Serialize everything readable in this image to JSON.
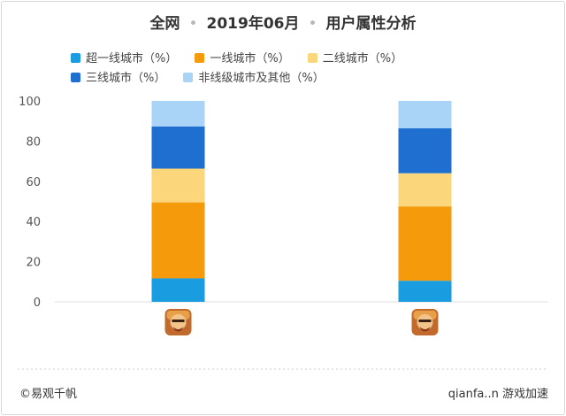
{
  "header": {
    "part1": "全网",
    "part2": "2019年06月",
    "part3": "用户属性分析",
    "separator": "•"
  },
  "footer": {
    "source": "©易观千帆",
    "watermark": "qianfa..n 游戏加速"
  },
  "colors": {
    "super_tier1": "#1a9de0",
    "tier1": "#f59a0b",
    "tier2": "#fbd67a",
    "tier3": "#1e6fd0",
    "other": "#a9d4f7",
    "axis": "#dddddd",
    "tick_text": "#555555"
  },
  "chart_data": {
    "type": "bar",
    "stacked": true,
    "categories": [
      "app-icon-1",
      "app-icon-2"
    ],
    "category_icons": [
      "clash-of-clans-icon",
      "clash-of-clans-icon"
    ],
    "series": [
      {
        "name": "超一线城市（%）",
        "color_key": "super_tier1",
        "values": [
          11.7,
          10.5
        ]
      },
      {
        "name": "一线城市（%）",
        "color_key": "tier1",
        "values": [
          37.8,
          37.0
        ]
      },
      {
        "name": "二线城市（%）",
        "color_key": "tier2",
        "values": [
          16.8,
          16.5
        ]
      },
      {
        "name": "三线城市（%）",
        "color_key": "tier3",
        "values": [
          21.0,
          22.4
        ]
      },
      {
        "name": "非线级城市及其他（%）",
        "color_key": "other",
        "values": [
          12.7,
          13.6
        ]
      }
    ],
    "ylim": [
      0,
      100
    ],
    "yticks": [
      "0",
      "20",
      "40",
      "60",
      "80",
      "100"
    ],
    "title": "",
    "xlabel": "",
    "ylabel": "",
    "legend_position": "top",
    "grid": false
  }
}
